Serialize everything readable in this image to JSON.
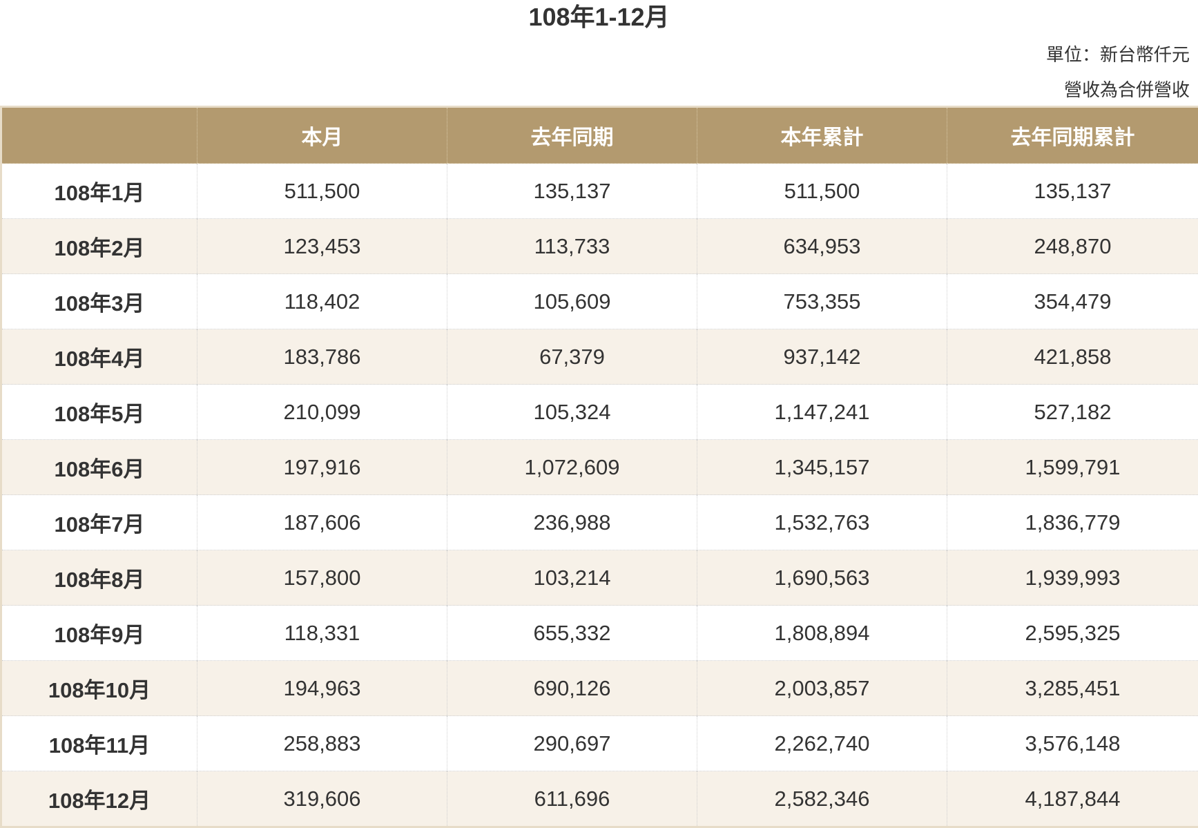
{
  "title": "108年1-12月",
  "notes": {
    "unit": "單位：新台幣仟元",
    "basis": "營收為合併營收"
  },
  "table": {
    "headers": [
      "",
      "本月",
      "去年同期",
      "本年累計",
      "去年同期累計"
    ],
    "rows": [
      [
        "108年1月",
        "511,500",
        "135,137",
        "511,500",
        "135,137"
      ],
      [
        "108年2月",
        "123,453",
        "113,733",
        "634,953",
        "248,870"
      ],
      [
        "108年3月",
        "118,402",
        "105,609",
        "753,355",
        "354,479"
      ],
      [
        "108年4月",
        "183,786",
        "67,379",
        "937,142",
        "421,858"
      ],
      [
        "108年5月",
        "210,099",
        "105,324",
        "1,147,241",
        "527,182"
      ],
      [
        "108年6月",
        "197,916",
        "1,072,609",
        "1,345,157",
        "1,599,791"
      ],
      [
        "108年7月",
        "187,606",
        "236,988",
        "1,532,763",
        "1,836,779"
      ],
      [
        "108年8月",
        "157,800",
        "103,214",
        "1,690,563",
        "1,939,993"
      ],
      [
        "108年9月",
        "118,331",
        "655,332",
        "1,808,894",
        "2,595,325"
      ],
      [
        "108年10月",
        "194,963",
        "690,126",
        "2,003,857",
        "3,285,451"
      ],
      [
        "108年11月",
        "258,883",
        "290,697",
        "2,262,740",
        "3,576,148"
      ],
      [
        "108年12月",
        "319,606",
        "611,696",
        "2,582,346",
        "4,187,844"
      ]
    ]
  },
  "colors": {
    "header_bg": "#b39a6f",
    "header_text": "#ffffff",
    "row_alt_bg": "#f7f1e8",
    "border": "#e7dcc8"
  }
}
